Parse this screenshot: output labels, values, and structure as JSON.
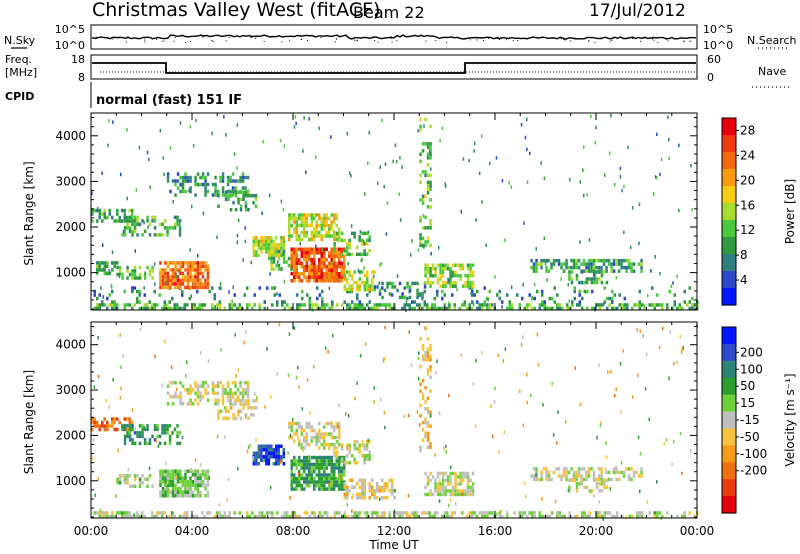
{
  "header": {
    "station": "Christmas Valley West (fitACF)",
    "beam": "Beam 22",
    "date": "17/Jul/2012"
  },
  "top_panels": {
    "nsky_label": "N.Sky",
    "nsearch_label": "N.Search",
    "noise_ticks": [
      "10^5",
      "10^0"
    ],
    "freq_label": "Freq.",
    "freq_unit": "[MHz]",
    "freq_ticks": [
      "18",
      "8"
    ],
    "nave_label": "Nave",
    "nave_ticks": [
      "60",
      "0"
    ],
    "cpid_label": "CPID",
    "cpid_value": "normal (fast) 151 IF"
  },
  "chart_data": [
    {
      "type": "heatmap",
      "name": "power",
      "ylabel": "Slant Range [km]",
      "xlabel": "Time UT",
      "x_ticks": [
        "00:00",
        "04:00",
        "08:00",
        "12:00",
        "16:00",
        "20:00",
        "00:00"
      ],
      "x_range_hours": [
        0,
        24
      ],
      "y_ticks": [
        1000,
        2000,
        3000,
        4000
      ],
      "y_range_km": [
        180,
        4500
      ],
      "colorbar": {
        "label": "Power [dB]",
        "ticks": [
          4,
          8,
          12,
          16,
          20,
          24,
          28
        ],
        "range": [
          0,
          30
        ],
        "colors": [
          "#0018ff",
          "#2a48c8",
          "#2f7e80",
          "#2e9a40",
          "#49c93b",
          "#a8dc2c",
          "#f6cc16",
          "#f79a10",
          "#f46a0e",
          "#ef3b0f",
          "#e8000c"
        ]
      },
      "regions": [
        {
          "t": [
            0.0,
            24.0
          ],
          "r": [
            180,
            330
          ],
          "dB": 11,
          "density": 0.55
        },
        {
          "t": [
            0.0,
            24.0
          ],
          "r": [
            330,
            700
          ],
          "dB": 7,
          "density": 0.12
        },
        {
          "t": [
            0.0,
            1.6
          ],
          "r": [
            2150,
            2400
          ],
          "dB": 9,
          "density": 0.55
        },
        {
          "t": [
            1.2,
            3.5
          ],
          "r": [
            1800,
            2250
          ],
          "dB": 10,
          "density": 0.5
        },
        {
          "t": [
            0.2,
            1.2
          ],
          "r": [
            1000,
            1250
          ],
          "dB": 9,
          "density": 0.45
        },
        {
          "t": [
            1.0,
            2.4
          ],
          "r": [
            850,
            1150
          ],
          "dB": 11,
          "density": 0.5
        },
        {
          "t": [
            2.7,
            4.6
          ],
          "r": [
            650,
            1250
          ],
          "dB": 24,
          "density": 0.85
        },
        {
          "t": [
            3.0,
            6.2
          ],
          "r": [
            2700,
            3200
          ],
          "dB": 8,
          "density": 0.45
        },
        {
          "t": [
            5.0,
            6.5
          ],
          "r": [
            2350,
            2800
          ],
          "dB": 9,
          "density": 0.4
        },
        {
          "t": [
            6.4,
            7.6
          ],
          "r": [
            1400,
            1800
          ],
          "dB": 16,
          "density": 0.75
        },
        {
          "t": [
            7.0,
            8.0
          ],
          "r": [
            1100,
            1500
          ],
          "dB": 12,
          "density": 0.6
        },
        {
          "t": [
            7.9,
            10.0
          ],
          "r": [
            800,
            1550
          ],
          "dB": 25,
          "density": 0.85
        },
        {
          "t": [
            7.8,
            9.8
          ],
          "r": [
            1700,
            2300
          ],
          "dB": 16,
          "density": 0.7
        },
        {
          "t": [
            9.6,
            11.0
          ],
          "r": [
            1400,
            1900
          ],
          "dB": 12,
          "density": 0.45
        },
        {
          "t": [
            10.0,
            11.2
          ],
          "r": [
            650,
            1050
          ],
          "dB": 15,
          "density": 0.6
        },
        {
          "t": [
            11.2,
            13.2
          ],
          "r": [
            450,
            800
          ],
          "dB": 8,
          "density": 0.3
        },
        {
          "t": [
            13.2,
            15.1
          ],
          "r": [
            700,
            1200
          ],
          "dB": 14,
          "density": 0.65
        },
        {
          "t": [
            17.4,
            21.8
          ],
          "r": [
            1000,
            1300
          ],
          "dB": 9,
          "density": 0.55
        },
        {
          "t": [
            18.9,
            20.4
          ],
          "r": [
            750,
            1050
          ],
          "dB": 10,
          "density": 0.5
        },
        {
          "t": [
            13.0,
            13.4
          ],
          "r": [
            1600,
            4400
          ],
          "dB": 12,
          "density": 0.35
        }
      ]
    },
    {
      "type": "heatmap",
      "name": "velocity",
      "ylabel": "Slant Range [km]",
      "xlabel": "Time UT",
      "x_ticks": [
        "00:00",
        "04:00",
        "08:00",
        "12:00",
        "16:00",
        "20:00",
        "00:00"
      ],
      "x_range_hours": [
        0,
        24
      ],
      "y_ticks": [
        1000,
        2000,
        3000,
        4000
      ],
      "y_range_km": [
        180,
        4500
      ],
      "colorbar": {
        "label": "Velocity [m s⁻¹]",
        "ticks": [
          200,
          100,
          50,
          15,
          -15,
          -50,
          -100,
          -200
        ],
        "range": [
          -250,
          250
        ],
        "colors": [
          "#0016ff",
          "#2e4cc9",
          "#2f8276",
          "#29a02e",
          "#6ed13a",
          "#bfbfbf",
          "#f8c33c",
          "#f59a18",
          "#f06f10",
          "#eb3a0e",
          "#e60009"
        ]
      },
      "regions": [
        {
          "t": [
            0.0,
            24.0
          ],
          "r": [
            180,
            330
          ],
          "v": 20,
          "density": 0.55
        },
        {
          "t": [
            0.0,
            1.6
          ],
          "r": [
            2150,
            2400
          ],
          "v": -150,
          "density": 0.6
        },
        {
          "t": [
            1.2,
            3.5
          ],
          "r": [
            1800,
            2250
          ],
          "v": 120,
          "density": 0.5
        },
        {
          "t": [
            1.0,
            2.4
          ],
          "r": [
            850,
            1150
          ],
          "v": 30,
          "density": 0.5
        },
        {
          "t": [
            2.7,
            4.6
          ],
          "r": [
            650,
            1250
          ],
          "v": 45,
          "density": 0.8
        },
        {
          "t": [
            3.0,
            6.2
          ],
          "r": [
            2700,
            3200
          ],
          "v": -5,
          "density": 0.45
        },
        {
          "t": [
            5.0,
            6.5
          ],
          "r": [
            2350,
            2800
          ],
          "v": -30,
          "density": 0.4
        },
        {
          "t": [
            6.4,
            7.6
          ],
          "r": [
            1400,
            1800
          ],
          "v": 200,
          "density": 0.75
        },
        {
          "t": [
            7.9,
            10.0
          ],
          "r": [
            800,
            1550
          ],
          "v": 110,
          "density": 0.8
        },
        {
          "t": [
            7.8,
            9.8
          ],
          "r": [
            1700,
            2300
          ],
          "v": -10,
          "density": 0.6
        },
        {
          "t": [
            9.6,
            11.0
          ],
          "r": [
            1400,
            1900
          ],
          "v": 0,
          "density": 0.45
        },
        {
          "t": [
            10.0,
            12.0
          ],
          "r": [
            650,
            1050
          ],
          "v": -40,
          "density": 0.55
        },
        {
          "t": [
            13.2,
            15.1
          ],
          "r": [
            700,
            1200
          ],
          "v": 5,
          "density": 0.6
        },
        {
          "t": [
            17.4,
            21.8
          ],
          "r": [
            1000,
            1300
          ],
          "v": 0,
          "density": 0.55
        },
        {
          "t": [
            18.9,
            20.4
          ],
          "r": [
            750,
            1050
          ],
          "v": -5,
          "density": 0.5
        },
        {
          "t": [
            13.0,
            13.4
          ],
          "r": [
            1600,
            4400
          ],
          "v": -60,
          "density": 0.3
        }
      ]
    }
  ]
}
